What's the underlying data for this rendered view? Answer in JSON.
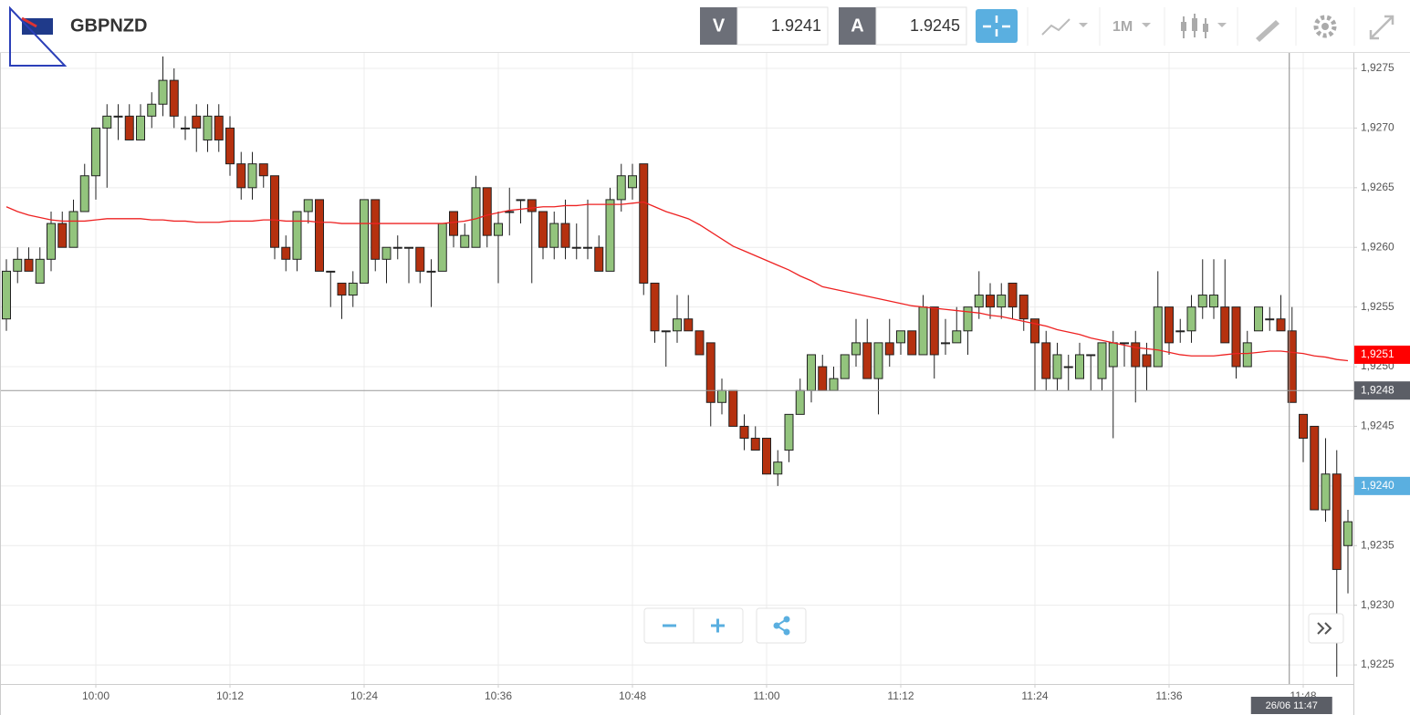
{
  "header": {
    "symbol": "GBPNZD",
    "bid_label": "V",
    "bid": 1.9241,
    "ask_label": "A",
    "ask": 1.9245,
    "timeframe": "1M"
  },
  "chart_data": {
    "type": "candlestick",
    "up_color": "#93c47d",
    "down_color": "#b5310f",
    "ma_color": "#ee2222",
    "categories": [
      null,
      null,
      null,
      null,
      null,
      null,
      null,
      null,
      "10:00",
      null,
      null,
      null,
      null,
      null,
      null,
      null,
      null,
      null,
      null,
      null,
      "10:12",
      null,
      null,
      null,
      null,
      null,
      null,
      null,
      null,
      null,
      null,
      null,
      "10:24",
      null,
      null,
      null,
      null,
      null,
      null,
      null,
      null,
      null,
      null,
      null,
      "10:36",
      null,
      null,
      null,
      null,
      null,
      null,
      null,
      null,
      null,
      null,
      null,
      "10:48",
      null,
      null,
      null,
      null,
      null,
      null,
      null,
      null,
      null,
      null,
      null,
      "11:00",
      null,
      null,
      null,
      null,
      null,
      null,
      null,
      null,
      null,
      null,
      null,
      "11:12",
      null,
      null,
      null,
      null,
      null,
      null,
      null,
      null,
      null,
      null,
      null,
      "11:24",
      null,
      null,
      null,
      null,
      null,
      null,
      null,
      null,
      null,
      null,
      null,
      "11:36",
      null,
      null,
      null,
      null,
      null,
      null,
      null,
      null,
      null,
      null,
      null,
      "11:48",
      null,
      null,
      null,
      null
    ],
    "open": [
      1.9254,
      1.9258,
      1.9259,
      1.9257,
      1.9259,
      1.9262,
      1.926,
      1.9263,
      1.9266,
      1.927,
      1.9271,
      1.9271,
      1.9269,
      1.9271,
      1.9272,
      1.9274,
      1.927,
      1.9271,
      1.9269,
      1.9271,
      1.927,
      1.9267,
      1.9265,
      1.9267,
      1.9266,
      1.926,
      1.9259,
      1.9263,
      1.9264,
      1.9258,
      1.9257,
      1.9256,
      1.9257,
      1.9264,
      1.9259,
      1.926,
      1.926,
      1.926,
      1.9258,
      1.9258,
      1.9263,
      1.926,
      1.926,
      1.9265,
      1.9261,
      1.9263,
      1.9264,
      1.9264,
      1.9263,
      1.926,
      1.9262,
      1.926,
      1.926,
      1.926,
      1.9258,
      1.9264,
      1.9265,
      1.9267,
      1.9257,
      1.9253,
      1.9253,
      1.9254,
      1.9253,
      1.9252,
      1.9247,
      1.9248,
      1.9245,
      1.9244,
      1.9244,
      1.9241,
      1.9243,
      1.9246,
      1.9248,
      1.925,
      1.9248,
      1.9249,
      1.9251,
      1.9252,
      1.9249,
      1.9252,
      1.9252,
      1.9253,
      1.9251,
      1.9255,
      1.9252,
      1.9252,
      1.9253,
      1.9255,
      1.9256,
      1.9255,
      1.9257,
      1.9256,
      1.9254,
      1.9252,
      1.9249,
      1.925,
      1.9249,
      1.9251,
      1.9249,
      1.925,
      1.9252,
      1.9252,
      1.9251,
      1.925,
      1.9255,
      1.9253,
      1.9253,
      1.9255,
      1.9255,
      1.9255,
      1.9255,
      1.925,
      1.9253,
      1.9254,
      1.9254,
      1.9253,
      1.9246,
      1.9245,
      1.9238,
      1.9241,
      1.9235
    ],
    "high": [
      1.9259,
      1.926,
      1.926,
      1.926,
      1.9263,
      1.9263,
      1.9264,
      1.9267,
      1.927,
      1.9272,
      1.9272,
      1.9272,
      1.9272,
      1.9273,
      1.9276,
      1.9275,
      1.9271,
      1.9272,
      1.9272,
      1.9272,
      1.9271,
      1.9268,
      1.9268,
      1.9267,
      1.9266,
      1.9261,
      1.9263,
      1.9264,
      1.9264,
      1.9258,
      1.9257,
      1.9258,
      1.9264,
      1.9264,
      1.926,
      1.9261,
      1.926,
      1.926,
      1.9259,
      1.9262,
      1.9263,
      1.9262,
      1.9266,
      1.9265,
      1.9263,
      1.9265,
      1.9264,
      1.9264,
      1.9263,
      1.9263,
      1.9264,
      1.9262,
      1.9264,
      1.9261,
      1.9265,
      1.9267,
      1.9267,
      1.9267,
      1.9257,
      1.9253,
      1.9256,
      1.9256,
      1.9253,
      1.9252,
      1.9249,
      1.9248,
      1.9246,
      1.9245,
      1.9244,
      1.9243,
      1.9246,
      1.9249,
      1.9251,
      1.9251,
      1.925,
      1.9251,
      1.9254,
      1.9254,
      1.9252,
      1.9254,
      1.9253,
      1.9253,
      1.9256,
      1.9255,
      1.9254,
      1.9255,
      1.9255,
      1.9258,
      1.9257,
      1.9257,
      1.9257,
      1.9256,
      1.9254,
      1.9253,
      1.9252,
      1.9251,
      1.9252,
      1.9251,
      1.9252,
      1.9253,
      1.9252,
      1.9253,
      1.9252,
      1.9258,
      1.9255,
      1.9254,
      1.9256,
      1.9259,
      1.9259,
      1.9259,
      1.9255,
      1.9253,
      1.9255,
      1.9255,
      1.9256,
      1.9255,
      1.9246,
      1.9245,
      1.9244,
      1.9243,
      1.9238
    ],
    "low": [
      1.9253,
      1.9257,
      1.9258,
      1.9257,
      1.9258,
      1.926,
      1.926,
      1.9263,
      1.9264,
      1.9265,
      1.9269,
      1.9269,
      1.9269,
      1.927,
      1.9271,
      1.927,
      1.9269,
      1.9268,
      1.9268,
      1.9268,
      1.9266,
      1.9264,
      1.9264,
      1.9265,
      1.9259,
      1.9258,
      1.9258,
      1.9262,
      1.9258,
      1.9255,
      1.9254,
      1.9255,
      1.9257,
      1.9258,
      1.9257,
      1.9259,
      1.9257,
      1.9257,
      1.9255,
      1.9258,
      1.926,
      1.926,
      1.926,
      1.926,
      1.9257,
      1.9261,
      1.9262,
      1.9257,
      1.9259,
      1.9259,
      1.9259,
      1.9259,
      1.9259,
      1.9258,
      1.9258,
      1.9263,
      1.9264,
      1.9256,
      1.9252,
      1.925,
      1.9252,
      1.9253,
      1.9251,
      1.9245,
      1.9246,
      1.9245,
      1.9243,
      1.9243,
      1.9241,
      1.924,
      1.9242,
      1.9246,
      1.9247,
      1.9248,
      1.9248,
      1.9249,
      1.925,
      1.9249,
      1.9246,
      1.925,
      1.9251,
      1.9251,
      1.9251,
      1.9249,
      1.9251,
      1.9252,
      1.9251,
      1.9254,
      1.9254,
      1.9254,
      1.9254,
      1.9253,
      1.9248,
      1.9248,
      1.9248,
      1.9248,
      1.9249,
      1.9248,
      1.9248,
      1.9244,
      1.925,
      1.9247,
      1.9248,
      1.925,
      1.9251,
      1.9252,
      1.9252,
      1.9254,
      1.9254,
      1.9252,
      1.9249,
      1.925,
      1.9253,
      1.9253,
      1.9253,
      1.9247,
      1.9242,
      1.9238,
      1.9237,
      1.9224,
      1.9231
    ],
    "close": [
      1.9258,
      1.9259,
      1.9258,
      1.9259,
      1.9262,
      1.926,
      1.9263,
      1.9266,
      1.927,
      1.9271,
      1.9271,
      1.9269,
      1.9271,
      1.9272,
      1.9274,
      1.9271,
      1.927,
      1.927,
      1.9271,
      1.9269,
      1.9267,
      1.9265,
      1.9267,
      1.9266,
      1.926,
      1.9259,
      1.9263,
      1.9264,
      1.9258,
      1.9258,
      1.9256,
      1.9257,
      1.9264,
      1.9259,
      1.926,
      1.926,
      1.926,
      1.9258,
      1.9258,
      1.9262,
      1.9261,
      1.9261,
      1.9265,
      1.9261,
      1.9262,
      1.9263,
      1.9264,
      1.9263,
      1.926,
      1.9262,
      1.926,
      1.926,
      1.926,
      1.9258,
      1.9264,
      1.9266,
      1.9266,
      1.9257,
      1.9253,
      1.9253,
      1.9254,
      1.9253,
      1.9251,
      1.9247,
      1.9248,
      1.9245,
      1.9244,
      1.9243,
      1.9241,
      1.9242,
      1.9246,
      1.9248,
      1.9251,
      1.9248,
      1.9249,
      1.9251,
      1.9252,
      1.9249,
      1.9252,
      1.9251,
      1.9253,
      1.9251,
      1.9255,
      1.9251,
      1.9252,
      1.9253,
      1.9255,
      1.9256,
      1.9255,
      1.9256,
      1.9255,
      1.9254,
      1.9252,
      1.9249,
      1.9251,
      1.925,
      1.9251,
      1.9251,
      1.9252,
      1.9252,
      1.9252,
      1.925,
      1.925,
      1.9255,
      1.9252,
      1.9253,
      1.9255,
      1.9256,
      1.9256,
      1.9252,
      1.925,
      1.9252,
      1.9255,
      1.9254,
      1.9253,
      1.9247,
      1.9244,
      1.9238,
      1.9241,
      1.9233,
      1.9237
    ],
    "ma": [
      1.92634,
      1.9263,
      1.92627,
      1.92625,
      1.92623,
      1.92622,
      1.92622,
      1.92622,
      1.92623,
      1.92624,
      1.92624,
      1.92624,
      1.92624,
      1.92623,
      1.92623,
      1.92622,
      1.92622,
      1.92621,
      1.92621,
      1.92621,
      1.92622,
      1.92622,
      1.92622,
      1.92623,
      1.92623,
      1.92622,
      1.92622,
      1.92622,
      1.92621,
      1.92621,
      1.9262,
      1.9262,
      1.9262,
      1.9262,
      1.9262,
      1.9262,
      1.9262,
      1.9262,
      1.9262,
      1.9262,
      1.92621,
      1.92622,
      1.92624,
      1.92627,
      1.92629,
      1.92631,
      1.92632,
      1.92633,
      1.92634,
      1.92634,
      1.92635,
      1.92635,
      1.92636,
      1.92636,
      1.92636,
      1.92636,
      1.92637,
      1.92638,
      1.92634,
      1.9263,
      1.92627,
      1.92624,
      1.92619,
      1.92613,
      1.92607,
      1.92601,
      1.92597,
      1.92593,
      1.92589,
      1.92585,
      1.92581,
      1.92576,
      1.92572,
      1.92567,
      1.92565,
      1.92563,
      1.92561,
      1.92559,
      1.92557,
      1.92555,
      1.92553,
      1.92551,
      1.9255,
      1.92549,
      1.92548,
      1.92547,
      1.92546,
      1.92545,
      1.92543,
      1.92542,
      1.9254,
      1.92538,
      1.92536,
      1.92534,
      1.92531,
      1.92529,
      1.92527,
      1.92524,
      1.92522,
      1.9252,
      1.92518,
      1.92516,
      1.92515,
      1.92514,
      1.92512,
      1.9251,
      1.92509,
      1.92509,
      1.92509,
      1.9251,
      1.92511,
      1.92511,
      1.92512,
      1.92513,
      1.92513,
      1.92512,
      1.92511,
      1.92509,
      1.92508,
      1.92506,
      1.92505
    ],
    "ylim": [
      1.92234,
      1.92763
    ],
    "yticks": [
      {
        "value": 1.9225,
        "label": "1,9225"
      },
      {
        "value": 1.923,
        "label": "1,9230"
      },
      {
        "value": 1.9235,
        "label": "1,9235"
      },
      {
        "value": 1.924,
        "label": "1,9240"
      },
      {
        "value": 1.9245,
        "label": "1,9245"
      },
      {
        "value": 1.925,
        "label": "1,9250"
      },
      {
        "value": 1.9255,
        "label": "1,9255"
      },
      {
        "value": 1.926,
        "label": "1,9260"
      },
      {
        "value": 1.9265,
        "label": "1,9265"
      },
      {
        "value": 1.927,
        "label": "1,9270"
      },
      {
        "value": 1.9275,
        "label": "1,9275"
      }
    ],
    "grid": true,
    "markers": [
      {
        "value": 1.9251,
        "label": "1,9251",
        "color": "#ff0000"
      },
      {
        "value": 1.924,
        "label": "1,9240",
        "color": "#5aafe0"
      }
    ],
    "crosshair": {
      "index": 115,
      "value": 1.9248,
      "label": "1,9248",
      "x_label": "26/06 11:47",
      "color": "#5b5e66"
    }
  }
}
